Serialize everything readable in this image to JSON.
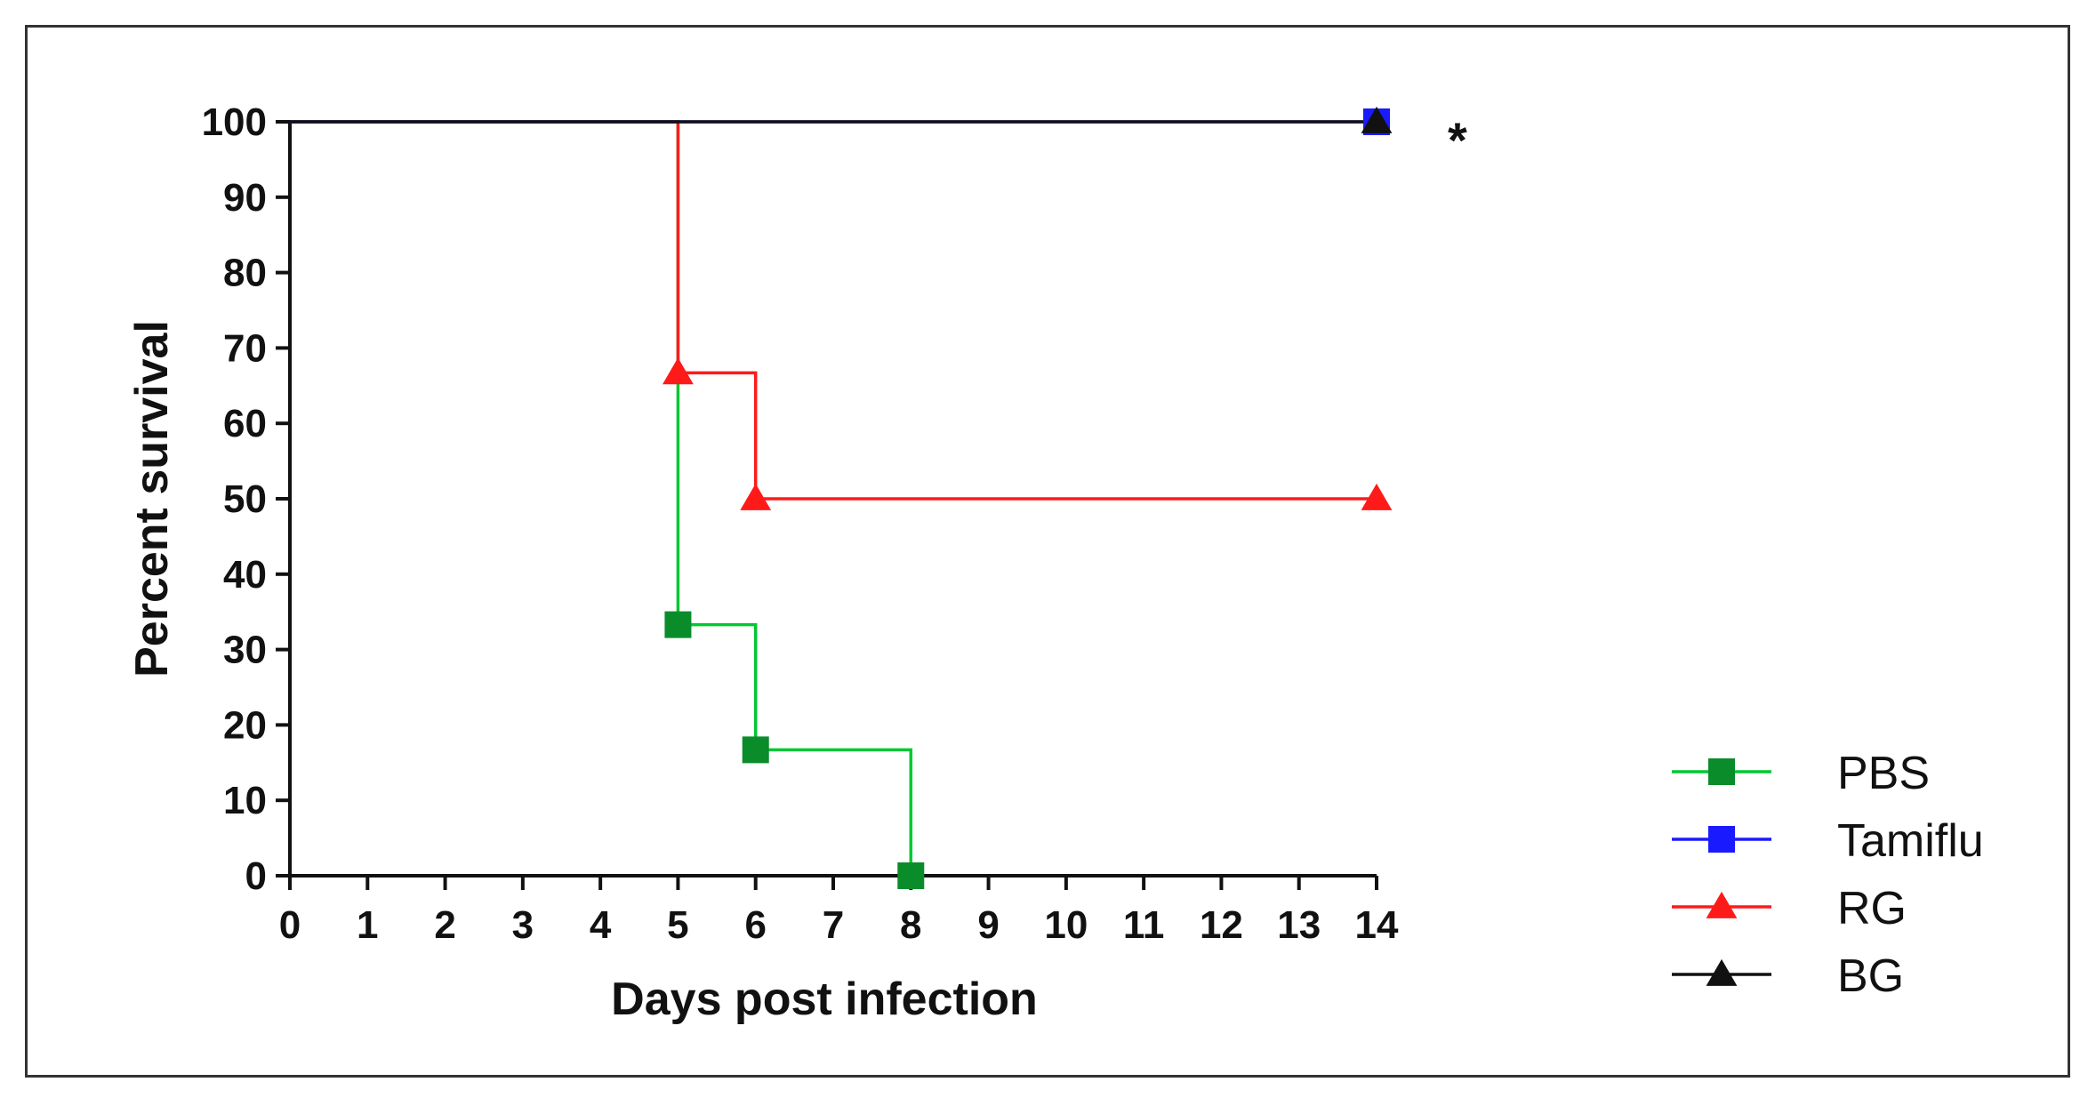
{
  "chart_data": {
    "type": "line",
    "step": true,
    "xlabel": "Days post infection",
    "ylabel": "Percent survival",
    "xlim": [
      0,
      14
    ],
    "ylim": [
      0,
      100
    ],
    "xticks": [
      0,
      1,
      2,
      3,
      4,
      5,
      6,
      7,
      8,
      9,
      10,
      11,
      12,
      13,
      14
    ],
    "yticks": [
      0,
      10,
      20,
      30,
      40,
      50,
      60,
      70,
      80,
      90,
      100
    ],
    "grid": false,
    "legend_position": "bottom-right",
    "annotation": "*",
    "series": [
      {
        "name": "PBS",
        "color": "#00c832",
        "marker": "square",
        "marker_color": "#0b8c2a",
        "x": [
          0,
          5,
          6,
          8
        ],
        "y": [
          100,
          33.3,
          16.7,
          0
        ],
        "marked": [
          1,
          2,
          3
        ]
      },
      {
        "name": "Tamiflu",
        "color": "#1a1aff",
        "marker": "square",
        "marker_color": "#1a1aff",
        "x": [
          0,
          14
        ],
        "y": [
          100,
          100
        ],
        "marked": [
          1
        ]
      },
      {
        "name": "RG",
        "color": "#ff1a1a",
        "marker": "triangle",
        "marker_color": "#ff1a1a",
        "x": [
          0,
          5,
          6,
          14
        ],
        "y": [
          100,
          66.7,
          50,
          50
        ],
        "marked": [
          1,
          2,
          3
        ]
      },
      {
        "name": "BG",
        "color": "#111111",
        "marker": "triangle",
        "marker_color": "#111111",
        "x": [
          0,
          14
        ],
        "y": [
          100,
          100
        ],
        "marked": [
          1
        ]
      }
    ]
  }
}
